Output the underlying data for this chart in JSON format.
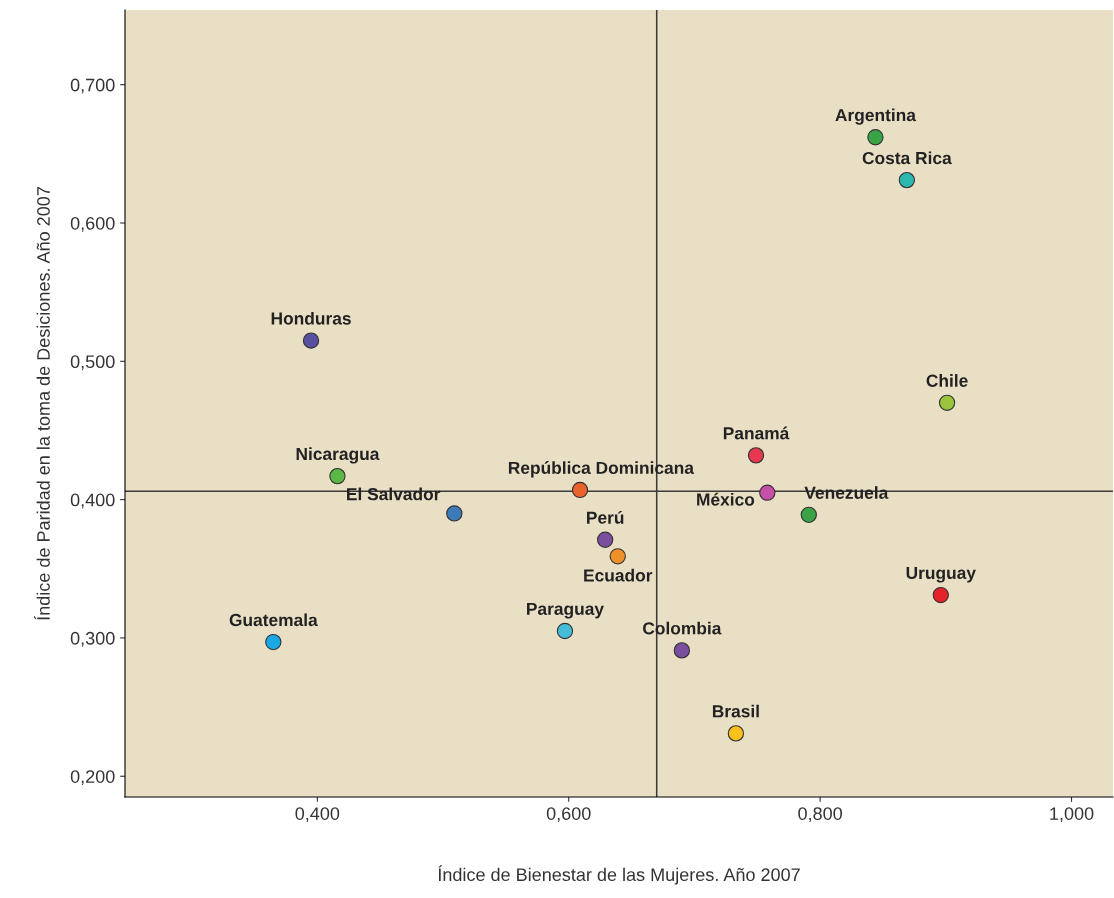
{
  "chart_data": {
    "type": "scatter",
    "xlabel": "Índice de Bienestar de las Mujeres. Año 2007",
    "ylabel": "Índice de Paridad en la toma de Desiciones. Año 2007",
    "xlim": [
      0.247,
      1.033
    ],
    "ylim": [
      0.185,
      0.754
    ],
    "xticks": [
      {
        "value": 0.4,
        "label": "0,400"
      },
      {
        "value": 0.6,
        "label": "0,600"
      },
      {
        "value": 0.8,
        "label": "0,800"
      },
      {
        "value": 1.0,
        "label": "1,000"
      }
    ],
    "yticks": [
      {
        "value": 0.2,
        "label": "0,200"
      },
      {
        "value": 0.3,
        "label": "0,300"
      },
      {
        "value": 0.4,
        "label": "0,400"
      },
      {
        "value": 0.5,
        "label": "0,500"
      },
      {
        "value": 0.6,
        "label": "0,600"
      },
      {
        "value": 0.7,
        "label": "0,700"
      }
    ],
    "grid": false,
    "marker": "circle",
    "ref_lines": [
      {
        "axis": "x",
        "value": 0.67,
        "color": "#3a3a3a"
      },
      {
        "axis": "y",
        "value": 0.406,
        "color": "#3a3a3a"
      }
    ],
    "series": [
      {
        "name": "Argentina",
        "color": "#3aa346",
        "x": [
          0.844
        ],
        "values": [
          0.662
        ]
      },
      {
        "name": "Costa Rica",
        "color": "#2bb8b0",
        "x": [
          0.869
        ],
        "values": [
          0.631
        ]
      },
      {
        "name": "Honduras",
        "color": "#5b4fa0",
        "x": [
          0.395
        ],
        "values": [
          0.515
        ]
      },
      {
        "name": "Chile",
        "color": "#9ac43c",
        "x": [
          0.901
        ],
        "values": [
          0.47
        ]
      },
      {
        "name": "Panamá",
        "color": "#e8384f",
        "x": [
          0.749
        ],
        "values": [
          0.432
        ]
      },
      {
        "name": "Nicaragua",
        "color": "#5cb846",
        "x": [
          0.416
        ],
        "values": [
          0.417
        ]
      },
      {
        "name": "República Dominicana",
        "color": "#e8632a",
        "x": [
          0.609
        ],
        "values": [
          0.407
        ]
      },
      {
        "name": "México",
        "color": "#c64fa8",
        "x": [
          0.758
        ],
        "values": [
          0.405
        ]
      },
      {
        "name": "El Salvador",
        "color": "#3d7ab8",
        "x": [
          0.509
        ],
        "values": [
          0.39
        ]
      },
      {
        "name": "Venezuela",
        "color": "#3aa346",
        "x": [
          0.791
        ],
        "values": [
          0.389
        ]
      },
      {
        "name": "Perú",
        "color": "#7a4fa0",
        "x": [
          0.629
        ],
        "values": [
          0.371
        ]
      },
      {
        "name": "Ecuador",
        "color": "#f0902a",
        "x": [
          0.639
        ],
        "values": [
          0.359
        ]
      },
      {
        "name": "Uruguay",
        "color": "#e52229",
        "x": [
          0.896
        ],
        "values": [
          0.331
        ]
      },
      {
        "name": "Guatemala",
        "color": "#1aa9e6",
        "x": [
          0.365
        ],
        "values": [
          0.297
        ]
      },
      {
        "name": "Paraguay",
        "color": "#45bcd8",
        "x": [
          0.597
        ],
        "values": [
          0.305
        ]
      },
      {
        "name": "Colombia",
        "color": "#7a4fa0",
        "x": [
          0.69
        ],
        "values": [
          0.291
        ]
      },
      {
        "name": "Brasil",
        "color": "#fcc21b",
        "x": [
          0.733
        ],
        "values": [
          0.231
        ]
      }
    ]
  }
}
